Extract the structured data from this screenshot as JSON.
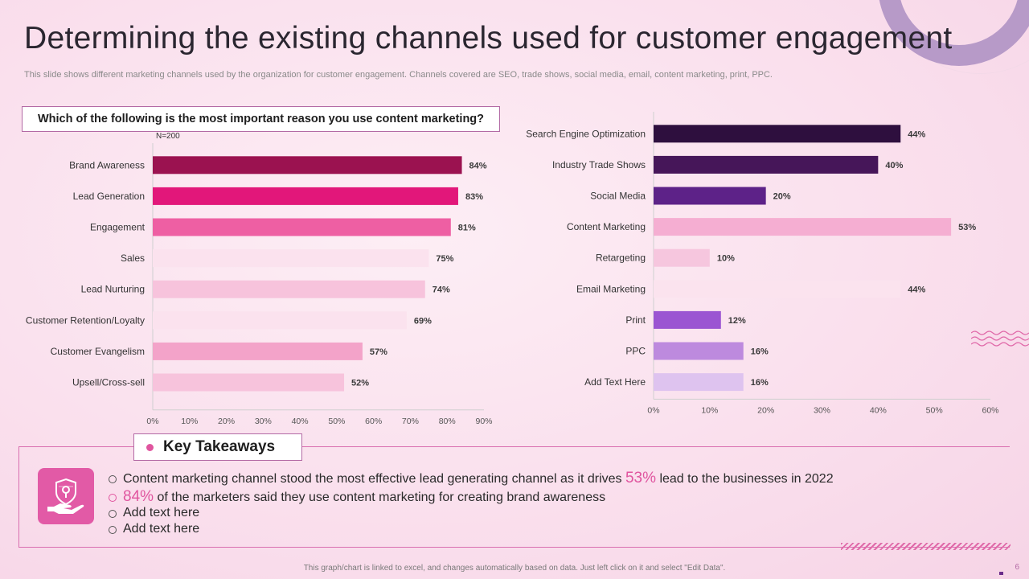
{
  "slide": {
    "title": "Determining the existing channels used for customer engagement",
    "subtitle": "This slide shows different marketing channels used by the organization for customer engagement. Channels covered are SEO, trade shows, social media, email, content marketing, print, PPC.",
    "question": "Which of the following is the most important reason you use content marketing?",
    "footer": "This graph/chart is linked to excel, and changes automatically based on data. Just left click on it and select \"Edit Data\".",
    "page_number": "6"
  },
  "takeaways": {
    "heading": "Key Takeaways",
    "icon": "shield-hand-icon",
    "items": [
      {
        "pre": "Content marketing channel stood the most effective lead generating channel as it drives ",
        "highlight": "53%",
        "post": " lead to the businesses in 2022"
      },
      {
        "pre": "",
        "highlight": "84%",
        "post": " of the marketers said they use content marketing for creating brand awareness"
      },
      {
        "pre": "Add text here",
        "highlight": "",
        "post": ""
      },
      {
        "pre": "Add text here",
        "highlight": "",
        "post": ""
      }
    ]
  },
  "chart_data": [
    {
      "type": "bar",
      "orientation": "horizontal",
      "title": "Which of the following is the most important reason you use content marketing?",
      "note": "N=200",
      "categories": [
        "Brand Awareness",
        "Lead Generation",
        "Engagement",
        "Sales",
        "Lead Nurturing",
        "Customer Retention/Loyalty",
        "Customer Evangelism",
        "Upsell/Cross-sell"
      ],
      "values": [
        84,
        83,
        81,
        75,
        74,
        69,
        57,
        52
      ],
      "value_labels": [
        "84%",
        "83%",
        "81%",
        "75%",
        "74%",
        "69%",
        "57%",
        "52%"
      ],
      "colors": [
        "#9b1250",
        "#e2177a",
        "#ee5fa3",
        "#fbe2ee",
        "#f7c3dc",
        "#fbe2ee",
        "#f3a3c9",
        "#f7c3dc"
      ],
      "xlim": [
        0,
        90
      ],
      "ticks": [
        "0%",
        "10%",
        "20%",
        "30%",
        "40%",
        "50%",
        "60%",
        "70%",
        "80%",
        "90%"
      ]
    },
    {
      "type": "bar",
      "orientation": "horizontal",
      "categories": [
        "Search Engine Optimization",
        "Industry Trade Shows",
        "Social Media",
        "Content Marketing",
        "Retargeting",
        "Email Marketing",
        "Print",
        "PPC",
        "Add Text Here"
      ],
      "values": [
        44,
        40,
        20,
        53,
        10,
        44,
        12,
        16,
        16
      ],
      "value_labels": [
        "44%",
        "40%",
        "20%",
        "53%",
        "10%",
        "44%",
        "12%",
        "16%",
        "16%"
      ],
      "colors": [
        "#2e0f3e",
        "#461659",
        "#5d2288",
        "#f5aed2",
        "#f6c6de",
        "#fbe3ee",
        "#9b55d2",
        "#bd8ade",
        "#dec3ef"
      ],
      "xlim": [
        0,
        60
      ],
      "ticks": [
        "0%",
        "10%",
        "20%",
        "30%",
        "40%",
        "50%",
        "60%"
      ]
    }
  ]
}
